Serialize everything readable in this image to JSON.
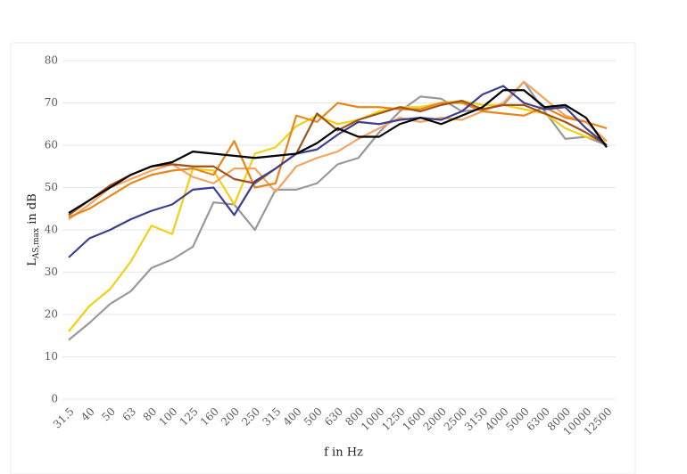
{
  "chart_data": {
    "type": "line",
    "y_label": {
      "main": "L",
      "sub": "AS,max",
      "rest": " in dB"
    },
    "x_label": "f in Hz",
    "categories": [
      "31.5",
      "40",
      "50",
      "63",
      "80",
      "100",
      "125",
      "160",
      "200",
      "250",
      "315",
      "400",
      "500",
      "630",
      "800",
      "1000",
      "1250",
      "1600",
      "2000",
      "2500",
      "3150",
      "4000",
      "5000",
      "6300",
      "8000",
      "10000",
      "12500"
    ],
    "series": [
      {
        "color": "#999999",
        "values": [
          14,
          18,
          22.5,
          25.5,
          31,
          33,
          36,
          46.5,
          46,
          40,
          49.5,
          49.5,
          51,
          55.5,
          57,
          63,
          68,
          71.5,
          71,
          68,
          68.5,
          69.5,
          75,
          68,
          61.5,
          62,
          60
        ]
      },
      {
        "color": "#f2d014",
        "values": [
          16,
          22,
          26,
          32.5,
          41,
          39,
          54.5,
          54,
          46,
          58,
          59.5,
          64.5,
          67,
          65,
          66,
          68,
          69,
          69,
          70,
          70.5,
          69.5,
          69.5,
          68.5,
          67.5,
          64,
          62,
          61
        ]
      },
      {
        "color": "#f4a460",
        "values": [
          42.5,
          46,
          50,
          52,
          54,
          55.5,
          52.5,
          51,
          54.5,
          54.5,
          49,
          55,
          57,
          58.5,
          61.5,
          64,
          66.5,
          65.5,
          66.5,
          66,
          68,
          70,
          75,
          71,
          67,
          65.5,
          61
        ]
      },
      {
        "color": "#e8861a",
        "values": [
          43,
          45,
          48,
          51,
          53,
          54,
          54.5,
          53,
          61,
          50,
          51,
          67,
          65.5,
          70,
          69,
          69,
          68.5,
          68.5,
          70,
          70,
          68,
          67.5,
          67,
          69,
          66.5,
          65.5,
          64
        ]
      },
      {
        "color": "#a0521d",
        "values": [
          43.5,
          47,
          50.5,
          53,
          55,
          55.5,
          55,
          55,
          52,
          51,
          54.5,
          58,
          67.5,
          63.5,
          66,
          67.5,
          69,
          68,
          69.5,
          70.5,
          68.5,
          69.5,
          69.5,
          67.5,
          65.5,
          63,
          60
        ]
      },
      {
        "color": "#3c3f8f",
        "values": [
          33.5,
          38,
          40,
          42.5,
          44.5,
          46,
          49.5,
          50,
          43.5,
          51.5,
          54.5,
          58,
          59,
          62.5,
          65.5,
          65,
          66,
          66.5,
          66,
          68,
          72,
          74,
          70,
          68.5,
          69,
          64,
          60
        ]
      },
      {
        "color": "#000000",
        "values": [
          44,
          47,
          50,
          53,
          55,
          56,
          58.5,
          58,
          57.5,
          57,
          57.5,
          58,
          60.5,
          64,
          62,
          62,
          65,
          66.5,
          65,
          67,
          69,
          73,
          73,
          69,
          69.5,
          66.5,
          59.5
        ]
      }
    ],
    "ylim": [
      0,
      80
    ],
    "yticks": [
      0,
      10,
      20,
      30,
      40,
      50,
      60,
      70,
      80
    ],
    "grid": true
  }
}
